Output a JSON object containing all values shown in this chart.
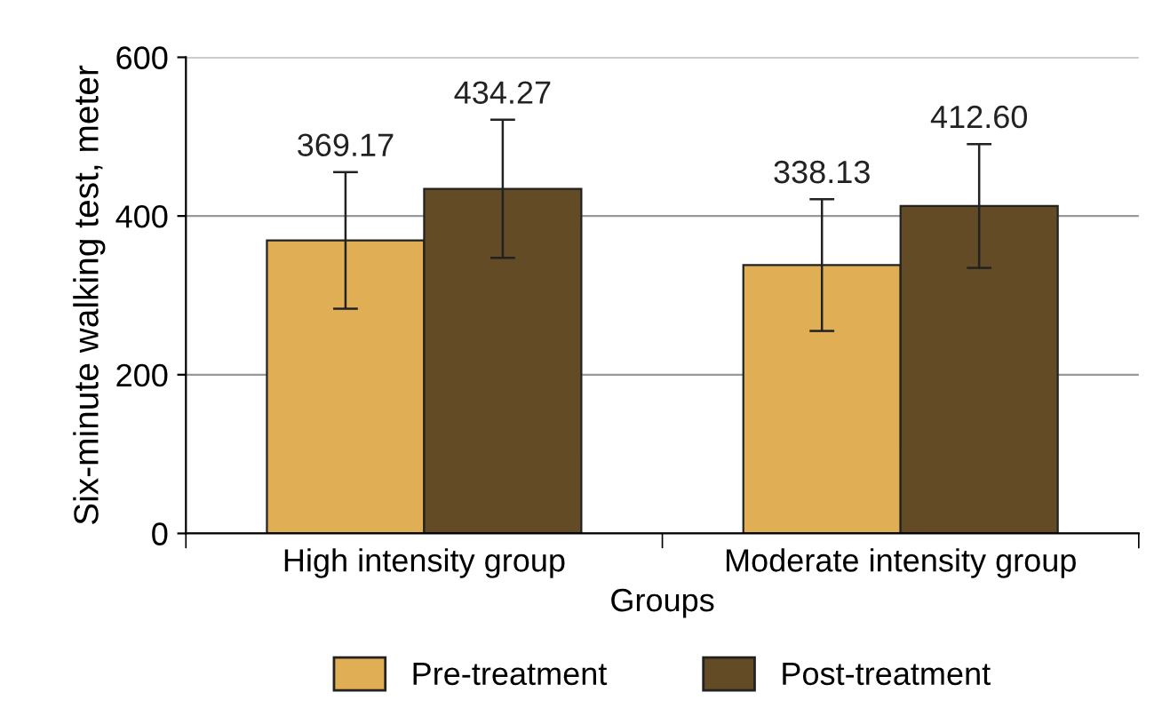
{
  "chart_data": {
    "type": "bar",
    "xlabel": "Groups",
    "ylabel": "Six-minute walking test, meter",
    "categories": [
      "High intensity group",
      "Moderate intensity group"
    ],
    "series": [
      {
        "name": "Pre-treatment",
        "color": "#dfae55",
        "values": [
          369.17,
          338.13
        ],
        "value_labels": [
          "369.17",
          "338.13"
        ],
        "errors": [
          86,
          83
        ]
      },
      {
        "name": "Post-treatment",
        "color": "#634b25",
        "values": [
          434.27,
          412.6
        ],
        "value_labels": [
          "434.27",
          "412.60"
        ],
        "errors": [
          87,
          78
        ]
      }
    ],
    "ylim": [
      0,
      600
    ],
    "yticks": [
      0,
      200,
      400,
      600
    ],
    "grid": "y",
    "legend": "bottom"
  }
}
